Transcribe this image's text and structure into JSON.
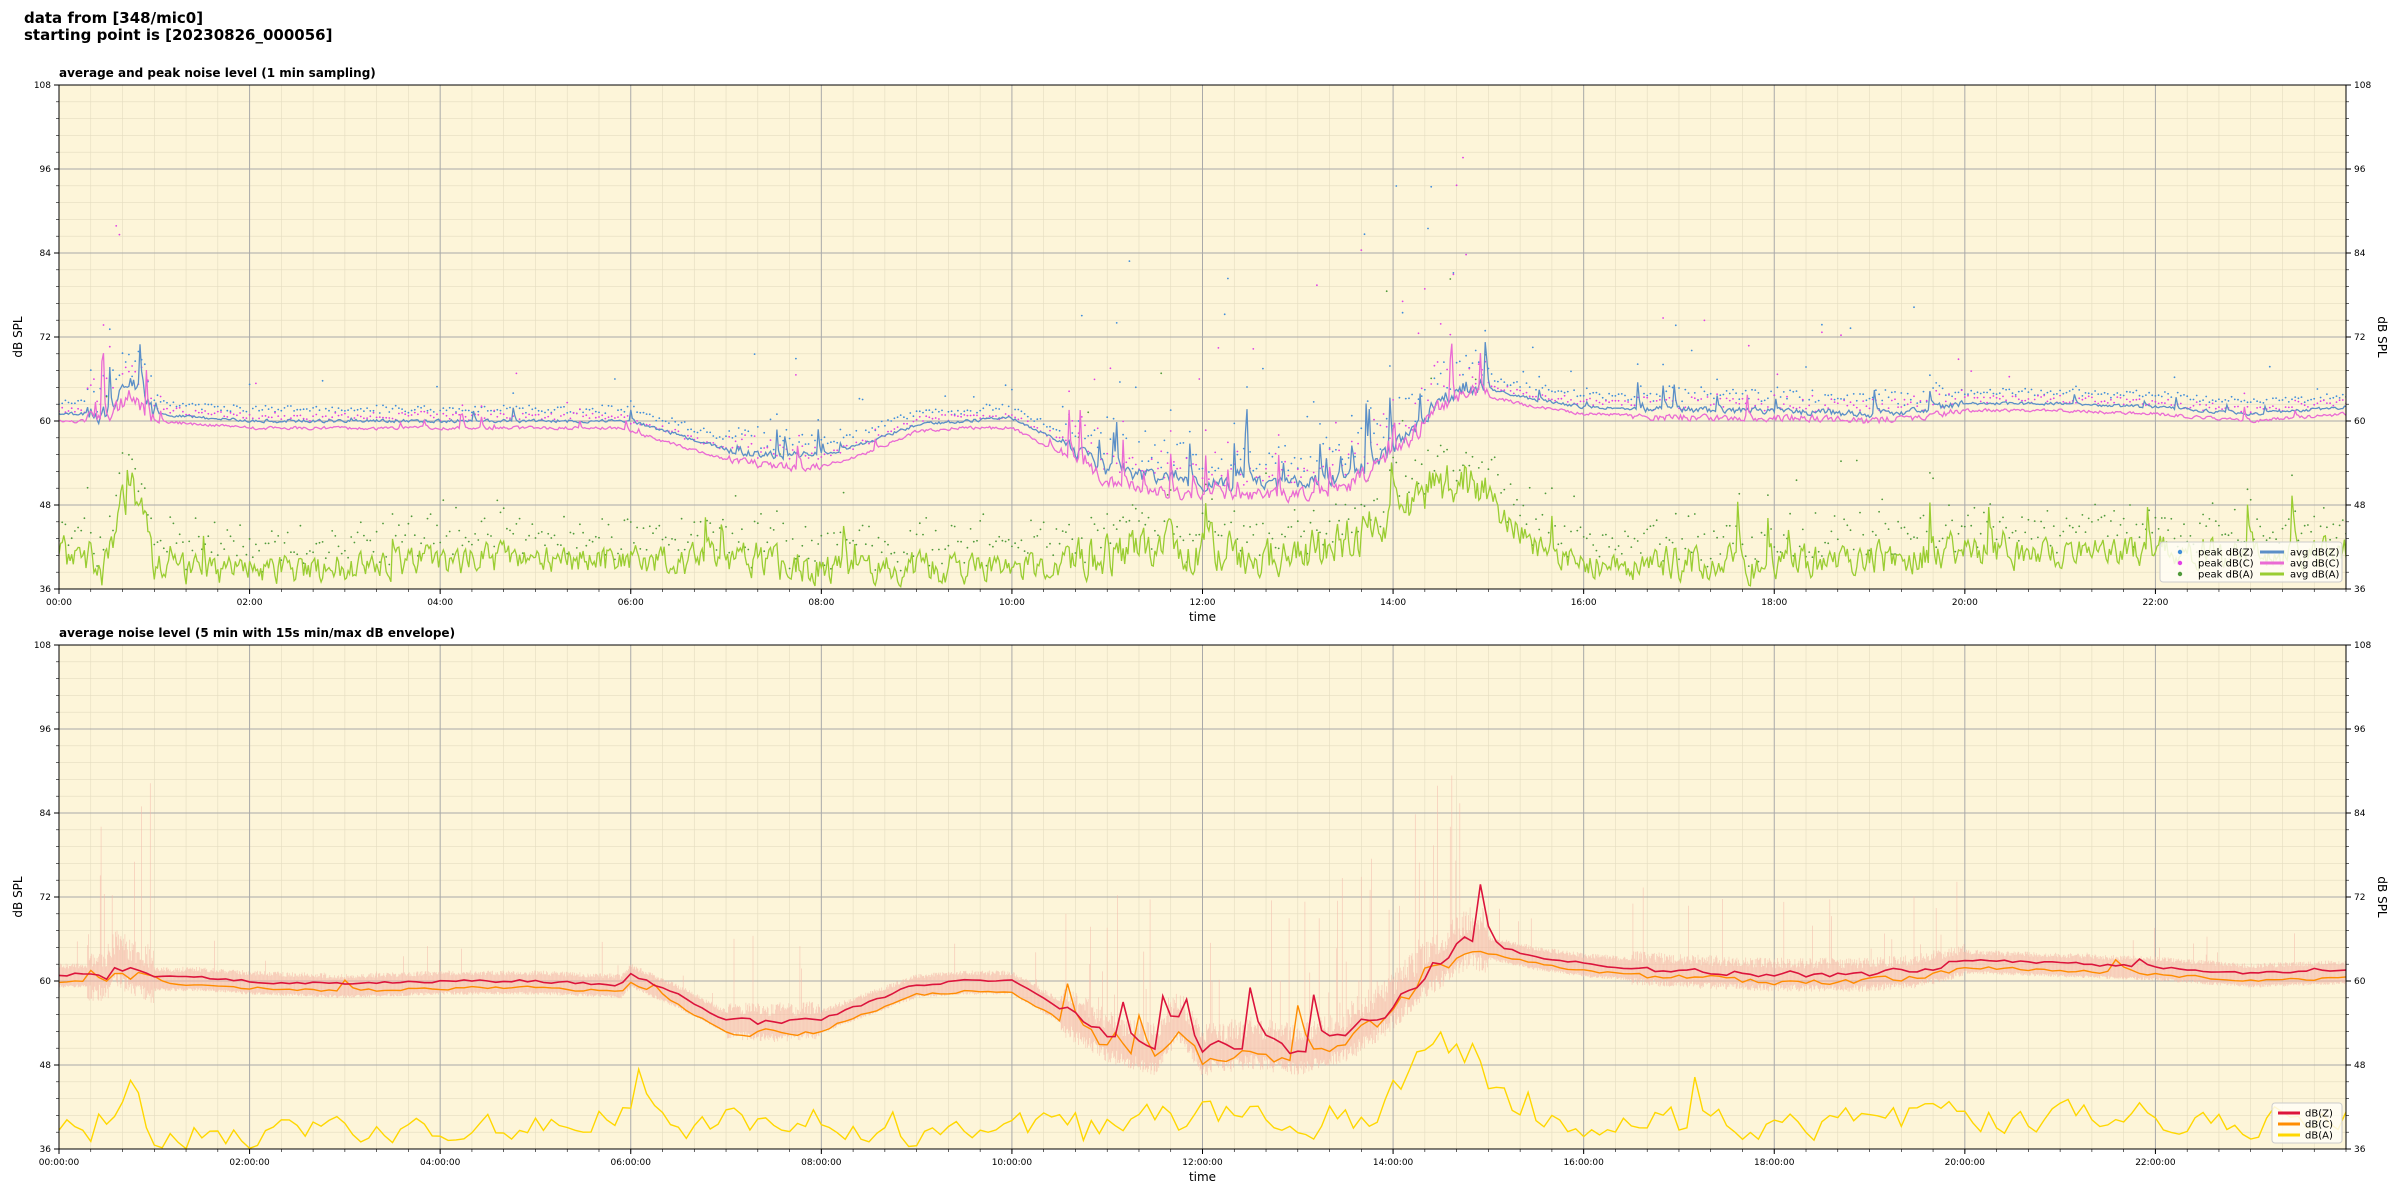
{
  "figure": {
    "title_line1": "data from [348/mic0]",
    "title_line2": "starting point is [20230826_000056]"
  },
  "chart_data": [
    {
      "type": "line",
      "title": "average and peak noise level (1 min sampling)",
      "xlabel": "time",
      "ylabel": "dB SPL",
      "ylabel_right": "dB SPL",
      "ylim": [
        36,
        108
      ],
      "yticks": [
        "36",
        "48",
        "60",
        "72",
        "84",
        "96",
        "108"
      ],
      "xlim_hours": [
        0,
        24
      ],
      "xticks": [
        "00:00",
        "02:00",
        "04:00",
        "06:00",
        "08:00",
        "10:00",
        "12:00",
        "14:00",
        "16:00",
        "18:00",
        "20:00",
        "22:00"
      ],
      "background": "#fdf5d9",
      "grid": true,
      "legend_placement": "lower-right",
      "legend": [
        {
          "label": "peak dB(Z)",
          "color": "#3e8ddb",
          "kind": "dot"
        },
        {
          "label": "peak dB(C)",
          "color": "#e23ee6",
          "kind": "dot"
        },
        {
          "label": "peak dB(A)",
          "color": "#4f9a3a",
          "kind": "dot"
        },
        {
          "label": "avg dB(Z)",
          "color": "#5b8fc7",
          "kind": "line"
        },
        {
          "label": "avg dB(C)",
          "color": "#ea6bd4",
          "kind": "line"
        },
        {
          "label": "avg dB(A)",
          "color": "#9acd32",
          "kind": "line"
        }
      ],
      "x_hours": [
        0,
        0.5,
        0.75,
        1,
        1.5,
        2,
        3,
        4,
        5,
        5.9,
        6,
        6.5,
        7,
        7.5,
        8,
        8.5,
        9,
        9.5,
        10,
        10.5,
        11,
        11.5,
        12,
        12.5,
        13,
        13.5,
        14,
        14.5,
        14.8,
        15,
        15.5,
        16,
        17,
        18,
        19,
        19.5,
        20,
        21,
        22,
        23,
        24
      ],
      "series": [
        {
          "name": "avg dB(Z)",
          "values": [
            61,
            61,
            66,
            61,
            60.5,
            60,
            60,
            60,
            60,
            60,
            60,
            58,
            56,
            55,
            55,
            57,
            59.5,
            60,
            60.5,
            57,
            53,
            52,
            51,
            51,
            51,
            52,
            56,
            63,
            65,
            64.5,
            63,
            62,
            61.5,
            61.5,
            61,
            61.5,
            62.5,
            62.5,
            62,
            61,
            62
          ]
        },
        {
          "name": "avg dB(C)",
          "values": [
            60,
            60,
            64,
            60,
            59.5,
            59,
            59,
            59,
            59,
            59,
            58.5,
            56.5,
            54.5,
            53.5,
            53.5,
            55.5,
            58.5,
            59,
            59,
            55.5,
            51.5,
            50,
            49.5,
            49.5,
            49.5,
            50.5,
            55,
            62,
            64,
            63.5,
            62,
            61,
            60.5,
            60.5,
            60,
            60.5,
            61.5,
            61.5,
            61,
            60,
            61
          ]
        },
        {
          "name": "avg dB(A)",
          "values": [
            40,
            38,
            50,
            39,
            37.5,
            38,
            38.5,
            39.5,
            39.5,
            39,
            40,
            39,
            40,
            39,
            38,
            38.5,
            38.5,
            38,
            37.5,
            39,
            40,
            41,
            41,
            40,
            40,
            42,
            46,
            50,
            51,
            48,
            41,
            39,
            39,
            38.5,
            39.5,
            40,
            41,
            40,
            41,
            40,
            41
          ]
        }
      ]
    },
    {
      "type": "line",
      "title": "average noise level (5 min with 15s min/max dB envelope)",
      "xlabel": "time",
      "ylabel": "dB SPL",
      "ylabel_right": "dB SPL",
      "ylim": [
        36,
        108
      ],
      "yticks": [
        "36",
        "48",
        "60",
        "72",
        "84",
        "96",
        "108"
      ],
      "xlim_hours": [
        0,
        24
      ],
      "xticks": [
        "00:00:00",
        "02:00:00",
        "04:00:00",
        "06:00:00",
        "08:00:00",
        "10:00:00",
        "12:00:00",
        "14:00:00",
        "16:00:00",
        "18:00:00",
        "20:00:00",
        "22:00:00"
      ],
      "background": "#fdf5d9",
      "grid": true,
      "legend_placement": "lower-right",
      "legend": [
        {
          "label": "dB(Z)",
          "color": "#dc143c",
          "kind": "line"
        },
        {
          "label": "dB(C)",
          "color": "#ff8c00",
          "kind": "line"
        },
        {
          "label": "dB(A)",
          "color": "#ffd700",
          "kind": "line"
        }
      ],
      "x_hours": [
        0,
        0.5,
        0.6,
        0.75,
        1,
        1.5,
        2,
        3,
        4,
        5,
        5.9,
        6,
        6.5,
        7,
        7.5,
        8,
        8.5,
        9,
        9.5,
        10,
        10.5,
        11,
        11.5,
        11.75,
        12,
        12.5,
        13,
        13.5,
        14,
        14.5,
        14.8,
        15,
        15.5,
        16,
        17,
        18,
        19,
        19.5,
        20,
        21,
        22,
        23,
        24
      ],
      "series": [
        {
          "name": "dB(Z)",
          "values": [
            61,
            61,
            63,
            62,
            60.5,
            60.5,
            60,
            59.5,
            60,
            60,
            59.5,
            61,
            58,
            54.5,
            54,
            54.5,
            57,
            59.5,
            60,
            60,
            56,
            52,
            50,
            55,
            50,
            51,
            50,
            52,
            57,
            63,
            66,
            65,
            63.5,
            62.5,
            61.5,
            61,
            61,
            61.5,
            63,
            62.5,
            62,
            61,
            61.5
          ]
        },
        {
          "name": "dB(C)",
          "values": [
            60,
            60,
            62,
            61,
            59.5,
            59.5,
            59,
            58.5,
            59,
            59,
            58.5,
            60,
            56.5,
            53,
            52.5,
            53,
            55.5,
            58,
            58.5,
            58.5,
            54.5,
            50.5,
            48.5,
            53,
            48.5,
            49.5,
            48.5,
            50.5,
            55.5,
            61.5,
            64.5,
            64,
            62.5,
            61.5,
            60.5,
            60,
            60,
            60.5,
            62,
            61.5,
            61,
            60,
            60.5
          ]
        },
        {
          "name": "dB(A)",
          "values": [
            40,
            38,
            42,
            44,
            37,
            38,
            37,
            38,
            38,
            39,
            40,
            41,
            38,
            40,
            38,
            38,
            38.5,
            37,
            38,
            38,
            38.5,
            37.5,
            38,
            38,
            38.5,
            39,
            38,
            40,
            43,
            49,
            49.5,
            44,
            39.5,
            38.5,
            39,
            38.5,
            39,
            39.5,
            40,
            39.5,
            40,
            39.5,
            40
          ]
        }
      ]
    }
  ]
}
